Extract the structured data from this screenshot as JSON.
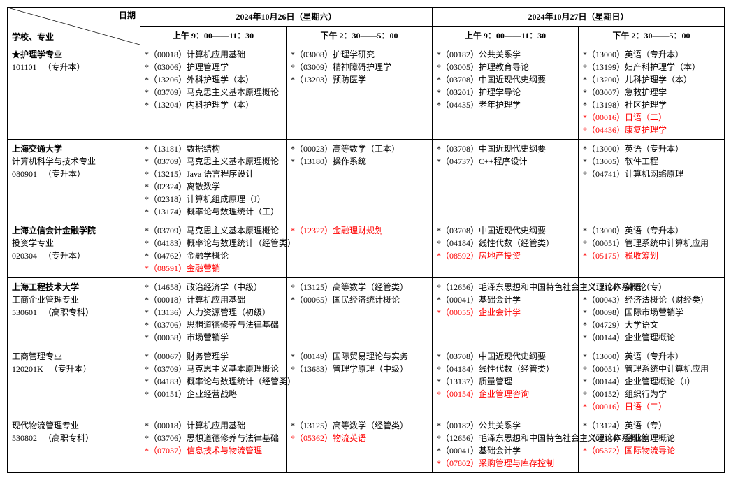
{
  "header": {
    "diag_top": "日期",
    "diag_bot": "学校、专业",
    "day1": "2024年10月26日（星期六）",
    "day2": "2024年10月27日（星期日）",
    "d1s1": "上午 9：00——11：30",
    "d1s2": "下午 2：30——5：00",
    "d2s1": "上午 9：00——11：30",
    "d2s2": "下午 2：30——5：00"
  },
  "rows": [
    {
      "school": [
        {
          "text": "★护理学专业",
          "bold": true
        },
        {
          "text": "101101 　（专升本）"
        }
      ],
      "d1s1": [
        {
          "code": "00018",
          "name": "计算机应用基础"
        },
        {
          "code": "03006",
          "name": "护理管理学"
        },
        {
          "code": "13206",
          "name": "外科护理学（本）"
        },
        {
          "code": "03709",
          "name": "马克思主义基本原理概论"
        },
        {
          "code": "13204",
          "name": "内科护理学（本）"
        }
      ],
      "d1s2": [
        {
          "code": "03008",
          "name": "护理学研究"
        },
        {
          "code": "03009",
          "name": "精神障碍护理学"
        },
        {
          "code": "13203",
          "name": "预防医学"
        }
      ],
      "d2s1": [
        {
          "code": "00182",
          "name": "公共关系学"
        },
        {
          "code": "03005",
          "name": "护理教育导论"
        },
        {
          "code": "03708",
          "name": "中国近现代史纲要"
        },
        {
          "code": "03201",
          "name": "护理学导论"
        },
        {
          "code": "04435",
          "name": "老年护理学"
        }
      ],
      "d2s2": [
        {
          "code": "13000",
          "name": "英语（专升本）"
        },
        {
          "code": "13199",
          "name": "妇产科护理学（本）"
        },
        {
          "code": "13200",
          "name": "儿科护理学（本）"
        },
        {
          "code": "03007",
          "name": "急救护理学"
        },
        {
          "code": "13198",
          "name": "社区护理学"
        },
        {
          "code": "00016",
          "name": "日语（二）",
          "red": true
        },
        {
          "code": "04436",
          "name": "康复护理学",
          "red": true
        }
      ]
    },
    {
      "school": [
        {
          "text": "上海交通大学",
          "bold": true
        },
        {
          "text": "计算机科学与技术专业"
        },
        {
          "text": "080901 　（专升本）"
        }
      ],
      "d1s1": [
        {
          "code": "13181",
          "name": "数据结构"
        },
        {
          "code": "03709",
          "name": "马克思主义基本原理概论"
        },
        {
          "code": "13215",
          "name": "Java 语言程序设计"
        },
        {
          "code": "02324",
          "name": "离散数学"
        },
        {
          "code": "02318",
          "name": "计算机组成原理（J）"
        },
        {
          "code": "13174",
          "name": "概率论与数理统计（工）"
        }
      ],
      "d1s2": [
        {
          "code": "00023",
          "name": "高等数学（工本）"
        },
        {
          "code": "13180",
          "name": "操作系统"
        }
      ],
      "d2s1": [
        {
          "code": "03708",
          "name": "中国近现代史纲要"
        },
        {
          "code": "04737",
          "name": "C++程序设计"
        }
      ],
      "d2s2": [
        {
          "code": "13000",
          "name": "英语（专升本）"
        },
        {
          "code": "13005",
          "name": "软件工程"
        },
        {
          "code": "04741",
          "name": "计算机网络原理"
        }
      ]
    },
    {
      "school": [
        {
          "text": "上海立信会计金融学院",
          "bold": true
        },
        {
          "text": "投资学专业"
        },
        {
          "text": "020304 　（专升本）"
        }
      ],
      "d1s1": [
        {
          "code": "03709",
          "name": "马克思主义基本原理概论"
        },
        {
          "code": "04183",
          "name": "概率论与数理统计（经管类）"
        },
        {
          "code": "04762",
          "name": "金融学概论"
        },
        {
          "code": "08591",
          "name": "金融营销",
          "red": true
        }
      ],
      "d1s2": [
        {
          "code": "12327",
          "name": "金融理财规划",
          "red": true
        }
      ],
      "d2s1": [
        {
          "code": "03708",
          "name": "中国近现代史纲要"
        },
        {
          "code": "04184",
          "name": "线性代数（经管类）"
        },
        {
          "code": "08592",
          "name": "房地产投资",
          "red": true
        }
      ],
      "d2s2": [
        {
          "code": "13000",
          "name": "英语（专升本）"
        },
        {
          "code": "00051",
          "name": "管理系统中计算机应用"
        },
        {
          "code": "05175",
          "name": "税收筹划",
          "red": true
        }
      ]
    },
    {
      "school": [
        {
          "text": "上海工程技术大学",
          "bold": true
        },
        {
          "text": "工商企业管理专业"
        },
        {
          "text": "530601 　（高职专科）"
        }
      ],
      "d1s1": [
        {
          "code": "14658",
          "name": "政治经济学（中级）"
        },
        {
          "code": "00018",
          "name": "计算机应用基础"
        },
        {
          "code": "13136",
          "name": "人力资源管理（初级）"
        },
        {
          "code": "03706",
          "name": "思想道德修养与法律基础"
        },
        {
          "code": "00058",
          "name": "市场营销学"
        }
      ],
      "d1s2": [
        {
          "code": "13125",
          "name": "高等数学（经管类）"
        },
        {
          "code": "00065",
          "name": "国民经济统计概论"
        }
      ],
      "d2s1": [
        {
          "code": "12656",
          "name": "毛泽东思想和中国特色社会主义理论体系概论"
        },
        {
          "code": "00041",
          "name": "基础会计学"
        },
        {
          "code": "00055",
          "name": "企业会计学",
          "red": true
        }
      ],
      "d2s2": [
        {
          "code": "13124",
          "name": "英语（专）"
        },
        {
          "code": "00043",
          "name": "经济法概论（财经类）"
        },
        {
          "code": "00098",
          "name": "国际市场营销学"
        },
        {
          "code": "04729",
          "name": "大学语文"
        },
        {
          "code": "00144",
          "name": "企业管理概论"
        }
      ]
    },
    {
      "school": [
        {
          "text": "工商管理专业"
        },
        {
          "text": "120201K 　（专升本）"
        }
      ],
      "d1s1": [
        {
          "code": "00067",
          "name": "财务管理学"
        },
        {
          "code": "03709",
          "name": "马克思主义基本原理概论"
        },
        {
          "code": "04183",
          "name": "概率论与数理统计（经管类）"
        },
        {
          "code": "00151",
          "name": "企业经营战略"
        }
      ],
      "d1s2": [
        {
          "code": "00149",
          "name": "国际贸易理论与实务"
        },
        {
          "code": "13683",
          "name": "管理学原理（中级）"
        }
      ],
      "d2s1": [
        {
          "code": "03708",
          "name": "中国近现代史纲要"
        },
        {
          "code": "04184",
          "name": "线性代数（经管类）"
        },
        {
          "code": "13137",
          "name": "质量管理"
        },
        {
          "code": "00154",
          "name": "企业管理咨询",
          "red": true
        }
      ],
      "d2s2": [
        {
          "code": "13000",
          "name": "英语（专升本）"
        },
        {
          "code": "00051",
          "name": "管理系统中计算机应用"
        },
        {
          "code": "00144",
          "name": "企业管理概论（J）"
        },
        {
          "code": "00152",
          "name": "组织行为学"
        },
        {
          "code": "00016",
          "name": "日语（二）",
          "red": true
        }
      ]
    },
    {
      "school": [
        {
          "text": "现代物流管理专业"
        },
        {
          "text": "530802 　（高职专科）"
        }
      ],
      "d1s1": [
        {
          "code": "00018",
          "name": "计算机应用基础"
        },
        {
          "code": "03706",
          "name": "思想道德修养与法律基础"
        },
        {
          "code": "07037",
          "name": "信息技术与物流管理",
          "red": true
        }
      ],
      "d1s2": [
        {
          "code": "13125",
          "name": "高等数学（经管类）"
        },
        {
          "code": "05362",
          "name": "物流英语",
          "red": true
        }
      ],
      "d2s1": [
        {
          "code": "00182",
          "name": "公共关系学"
        },
        {
          "code": "12656",
          "name": "毛泽东思想和中国特色社会主义理论体系概论"
        },
        {
          "code": "00041",
          "name": "基础会计学"
        },
        {
          "code": "07802",
          "name": "采购管理与库存控制",
          "red": true
        }
      ],
      "d2s2": [
        {
          "code": "13124",
          "name": "英语（专）"
        },
        {
          "code": "00144",
          "name": "企业管理概论"
        },
        {
          "code": "05372",
          "name": "国际物流导论",
          "red": true
        }
      ]
    }
  ]
}
